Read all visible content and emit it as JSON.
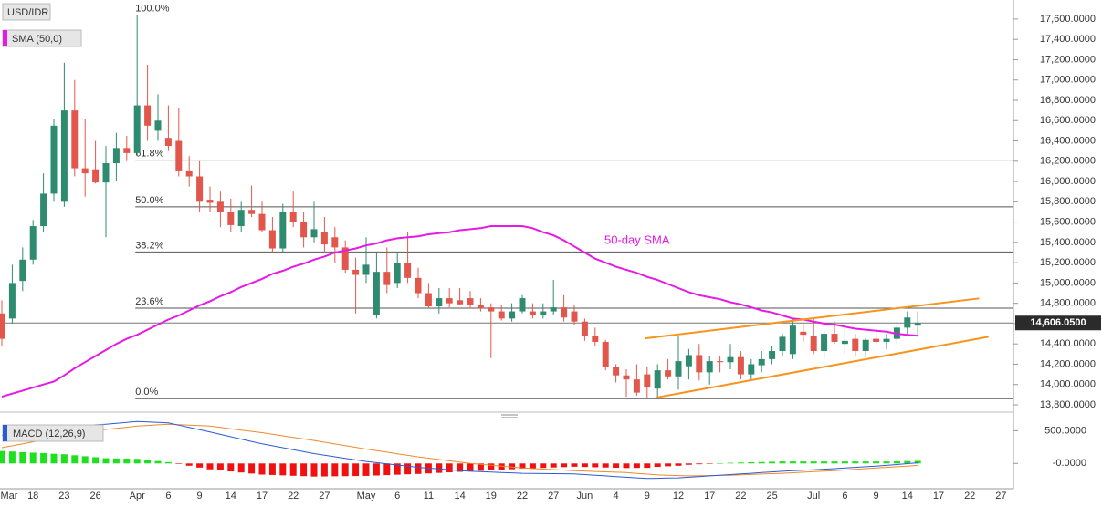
{
  "chart_data": [
    {
      "type": "candlestick",
      "title": "USD/IDR",
      "categories": [
        "Mar",
        null,
        null,
        "18",
        null,
        null,
        "23",
        null,
        null,
        "26",
        null,
        null,
        null,
        "Apr",
        null,
        null,
        "6",
        null,
        null,
        "9",
        null,
        null,
        "14",
        null,
        null,
        "17",
        null,
        null,
        "22",
        null,
        null,
        "27",
        null,
        null,
        null,
        "May",
        null,
        null,
        "6",
        null,
        null,
        "11",
        null,
        null,
        "14",
        null,
        null,
        "19",
        null,
        null,
        "22",
        null,
        null,
        "27",
        null,
        null,
        "Jun",
        null,
        null,
        "4",
        null,
        null,
        "9",
        null,
        null,
        "12",
        null,
        null,
        "17",
        null,
        null,
        "22",
        null,
        null,
        "25",
        null,
        null,
        null,
        "Jul",
        null,
        null,
        "6",
        null,
        null,
        "9",
        null,
        null,
        "14",
        null,
        null,
        "17",
        null,
        null,
        "22",
        null,
        null,
        "27",
        null
      ],
      "open": [
        14700,
        14650,
        15020,
        15230,
        15560,
        15880,
        15800,
        16700,
        16130,
        16120,
        15990,
        16180,
        16330,
        16280,
        16750,
        16500,
        16430,
        16400,
        16100,
        16050,
        15820,
        15800,
        15700,
        15560,
        15720,
        15680,
        15520,
        15340,
        15700,
        15600,
        15450,
        15500,
        15450,
        15350,
        15130,
        15080,
        14680,
        15110,
        15000,
        15200,
        15050,
        14900,
        14770,
        14850,
        14830,
        14850,
        14780,
        14760,
        14720,
        14650,
        14720,
        14720,
        14680,
        14720,
        14760,
        14720,
        14620,
        14480,
        14420,
        14170,
        14090,
        14050,
        14100,
        13960,
        14140,
        14080,
        14180,
        14290,
        14120,
        14230,
        14220,
        14270,
        14100,
        14190,
        14250,
        14330,
        14300,
        14520,
        14480,
        14330,
        14500,
        14400,
        14450,
        14330,
        14450,
        14420,
        14450,
        14560,
        14580,
        null,
        null,
        null,
        null,
        null,
        null,
        null,
        null,
        null
      ],
      "high": [
        14830,
        15180,
        15350,
        15620,
        16080,
        16620,
        17170,
        17000,
        16620,
        16400,
        16350,
        16480,
        16450,
        17640,
        17150,
        16860,
        16750,
        16720,
        16250,
        16200,
        15950,
        15900,
        15830,
        15800,
        15960,
        15800,
        15650,
        15780,
        15900,
        15700,
        15800,
        15650,
        15550,
        15420,
        15250,
        15450,
        15300,
        15350,
        15300,
        15500,
        15150,
        15000,
        14950,
        14950,
        14950,
        14920,
        14850,
        14800,
        14780,
        14800,
        14880,
        14800,
        14800,
        15030,
        14880,
        14780,
        14650,
        14560,
        14440,
        14200,
        14150,
        14200,
        14180,
        14200,
        14250,
        14480,
        14350,
        14400,
        14280,
        14280,
        14400,
        14330,
        14250,
        14330,
        14380,
        14500,
        14640,
        14600,
        14650,
        14530,
        14620,
        14560,
        14500,
        14460,
        14550,
        14500,
        14600,
        14720,
        14720,
        null,
        null,
        null,
        null,
        null,
        null,
        null,
        null,
        null
      ],
      "low": [
        14380,
        14600,
        14920,
        15180,
        15500,
        15800,
        15750,
        16050,
        15850,
        15980,
        15450,
        16000,
        16200,
        16250,
        16400,
        16400,
        16300,
        16050,
        15950,
        15700,
        15700,
        15550,
        15500,
        15500,
        15650,
        15500,
        15300,
        15300,
        15550,
        15350,
        15400,
        15300,
        15200,
        15100,
        14700,
        15000,
        14650,
        14900,
        14950,
        15000,
        14850,
        14750,
        14700,
        14760,
        14780,
        14750,
        14720,
        14260,
        14630,
        14620,
        14700,
        14650,
        14650,
        14690,
        14620,
        14580,
        14430,
        14380,
        14140,
        14020,
        13880,
        13890,
        13870,
        13860,
        14050,
        13950,
        14050,
        14040,
        14000,
        14120,
        14150,
        14050,
        14050,
        14120,
        14200,
        14280,
        14250,
        14420,
        14300,
        14250,
        14400,
        14300,
        14280,
        14270,
        14400,
        14350,
        14400,
        14500,
        14480,
        null,
        null,
        null,
        null,
        null,
        null,
        null,
        null,
        null
      ],
      "close": [
        14450,
        15000,
        15230,
        15560,
        15880,
        16550,
        16700,
        16130,
        16080,
        15990,
        16180,
        16330,
        16280,
        16750,
        16550,
        16600,
        16350,
        16100,
        16050,
        15800,
        15790,
        15700,
        15570,
        15720,
        15680,
        15520,
        15340,
        15700,
        15600,
        15450,
        15530,
        15380,
        15350,
        15130,
        15080,
        15180,
        15110,
        14980,
        15200,
        15050,
        14900,
        14770,
        14850,
        14800,
        14790,
        14780,
        14750,
        14720,
        14650,
        14720,
        14850,
        14680,
        14720,
        14760,
        14660,
        14620,
        14480,
        14420,
        14170,
        14090,
        14050,
        13920,
        13970,
        14140,
        14080,
        14230,
        14290,
        14120,
        14230,
        14220,
        14270,
        14100,
        14200,
        14250,
        14330,
        14470,
        14580,
        14490,
        14330,
        14500,
        14420,
        14430,
        14330,
        14440,
        14420,
        14450,
        14560,
        14660,
        14606.05,
        null,
        null,
        null,
        null,
        null,
        null,
        null,
        null,
        null
      ],
      "up_color": "#2f8b70",
      "down_color": "#e2574c",
      "overlays": [
        {
          "name": "SMA (50,0)",
          "color": "#e619e6",
          "values": [
            13880,
            13910,
            13940,
            13970,
            14000,
            14030,
            14090,
            14160,
            14220,
            14280,
            14340,
            14400,
            14450,
            14490,
            14540,
            14590,
            14640,
            14680,
            14730,
            14780,
            14820,
            14870,
            14910,
            14960,
            15000,
            15040,
            15090,
            15120,
            15160,
            15190,
            15230,
            15260,
            15300,
            15320,
            15340,
            15370,
            15390,
            15420,
            15440,
            15450,
            15460,
            15480,
            15490,
            15500,
            15520,
            15530,
            15540,
            15560,
            15560,
            15560,
            15560,
            15540,
            15500,
            15470,
            15420,
            15360,
            15300,
            15240,
            15200,
            15160,
            15130,
            15100,
            15060,
            15030,
            14990,
            14950,
            14910,
            14880,
            14860,
            14840,
            14810,
            14790,
            14760,
            14730,
            14710,
            14680,
            14650,
            14640,
            14620,
            14600,
            14590,
            14570,
            14550,
            14540,
            14530,
            14520,
            14500,
            14490,
            14480,
            null,
            null,
            null,
            null,
            null,
            null,
            null,
            null,
            null
          ]
        }
      ],
      "annotation": "50-day SMA",
      "fib_levels": [
        {
          "label": "100.0%",
          "value": 17640
        },
        {
          "label": "61.8%",
          "value": 16210
        },
        {
          "label": "50.0%",
          "value": 15750
        },
        {
          "label": "38.2%",
          "value": 15305
        },
        {
          "label": "23.6%",
          "value": 14752
        },
        {
          "label": "0.0%",
          "value": 13860
        }
      ],
      "trendlines": [
        {
          "color": "#f7941d",
          "points": [
            [
              61.8,
              14454
            ],
            [
              93.9,
              14848
            ]
          ]
        },
        {
          "color": "#f7941d",
          "points": [
            [
              62.8,
              13870
            ],
            [
              94.8,
              14470
            ]
          ]
        }
      ],
      "last_price": {
        "value": 14606.05,
        "label": "14,606.0500"
      },
      "ylim": [
        13746,
        17788
      ],
      "yticks": [
        {
          "value": 13800,
          "label": "13,800.0000"
        },
        {
          "value": 14000,
          "label": "14,000.0000"
        },
        {
          "value": 14200,
          "label": "14,200.0000"
        },
        {
          "value": 14400,
          "label": "14,400.0000"
        },
        {
          "value": 14600,
          "label": "14,600.0000"
        },
        {
          "value": 14800,
          "label": "14,800.0000"
        },
        {
          "value": 15000,
          "label": "15,000.0000"
        },
        {
          "value": 15200,
          "label": "15,200.0000"
        },
        {
          "value": 15400,
          "label": "15,400.0000"
        },
        {
          "value": 15600,
          "label": "15,600.0000"
        },
        {
          "value": 15800,
          "label": "15,800.0000"
        },
        {
          "value": 16000,
          "label": "16,000.0000"
        },
        {
          "value": 16200,
          "label": "16,200.0000"
        },
        {
          "value": 16400,
          "label": "16,400.0000"
        },
        {
          "value": 16600,
          "label": "16,600.0000"
        },
        {
          "value": 16800,
          "label": "16,800.0000"
        },
        {
          "value": 17000,
          "label": "17,000.0000"
        },
        {
          "value": 17200,
          "label": "17,200.0000"
        },
        {
          "value": 17400,
          "label": "17,400.0000"
        },
        {
          "value": 17600,
          "label": "17,600.0000"
        }
      ]
    },
    {
      "type": "macd",
      "title": "MACD (12,26,9)",
      "macd_line": {
        "color": "#2a5bd7",
        "values": [
          430,
          452,
          473,
          495,
          517,
          538,
          560,
          570,
          580,
          590,
          600,
          613,
          627,
          640,
          633,
          627,
          620,
          585,
          550,
          515,
          480,
          444,
          408,
          372,
          336,
          300,
          270,
          240,
          210,
          180,
          150,
          126,
          102,
          78,
          54,
          30,
          12,
          -6,
          -24,
          -42,
          -60,
          -72,
          -84,
          -96,
          -108,
          -120,
          -126,
          -132,
          -138,
          -144,
          -150,
          -152,
          -154,
          -156,
          -158,
          -160,
          -170,
          -180,
          -190,
          -200,
          -210,
          -220,
          -230,
          -227,
          -223,
          -220,
          -210,
          -200,
          -190,
          -180,
          -170,
          -160,
          -150,
          -140,
          -130,
          -120,
          -112,
          -104,
          -96,
          -88,
          -80,
          -70,
          -60,
          -50,
          -40,
          -30,
          -17,
          -3,
          10,
          null,
          null,
          null,
          null,
          null,
          null,
          null,
          null,
          null
        ]
      },
      "signal_line": {
        "color": "#f0892a",
        "values": [
          240,
          270,
          300,
          330,
          360,
          390,
          420,
          445,
          470,
          495,
          520,
          537,
          553,
          570,
          580,
          590,
          600,
          593,
          585,
          578,
          570,
          550,
          530,
          510,
          490,
          470,
          446,
          422,
          398,
          374,
          350,
          324,
          298,
          272,
          246,
          220,
          196,
          172,
          148,
          124,
          100,
          80,
          60,
          40,
          20,
          0,
          -14,
          -28,
          -42,
          -56,
          -70,
          -78,
          -86,
          -94,
          -102,
          -110,
          -116,
          -122,
          -128,
          -134,
          -140,
          -152,
          -163,
          -175,
          -180,
          -185,
          -190,
          -188,
          -185,
          -183,
          -180,
          -174,
          -168,
          -162,
          -156,
          -150,
          -142,
          -134,
          -126,
          -118,
          -110,
          -100,
          -90,
          -80,
          -70,
          -60,
          -50,
          -40,
          -30,
          null,
          null,
          null,
          null,
          null,
          null,
          null,
          null,
          null
        ]
      },
      "histogram": {
        "up_color": "#1fe01f",
        "down_color": "#f01010",
        "values": [
          190,
          182,
          173,
          165,
          157,
          148,
          140,
          125,
          110,
          95,
          80,
          76,
          74,
          70,
          53,
          37,
          20,
          -8,
          -35,
          -63,
          -90,
          -106,
          -122,
          -138,
          -154,
          -170,
          -176,
          -182,
          -188,
          -194,
          -200,
          -198,
          -196,
          -194,
          -192,
          -190,
          -184,
          -178,
          -172,
          -166,
          -160,
          -152,
          -144,
          -136,
          -128,
          -120,
          -112,
          -104,
          -96,
          -88,
          -80,
          -74,
          -68,
          -62,
          -56,
          -50,
          -54,
          -58,
          -62,
          -66,
          -70,
          -68,
          -67,
          -52,
          -43,
          -35,
          -20,
          -12,
          -5,
          3,
          10,
          14,
          18,
          22,
          26,
          30,
          30,
          30,
          30,
          30,
          30,
          30,
          30,
          30,
          30,
          30,
          33,
          37,
          40,
          null,
          null,
          null,
          null,
          null,
          null,
          null,
          null,
          null
        ]
      },
      "ylim": [
        -330,
        700
      ],
      "yticks": [
        {
          "value": 500,
          "label": "500.0000"
        },
        {
          "value": 0,
          "label": "-0.0000"
        }
      ]
    }
  ]
}
